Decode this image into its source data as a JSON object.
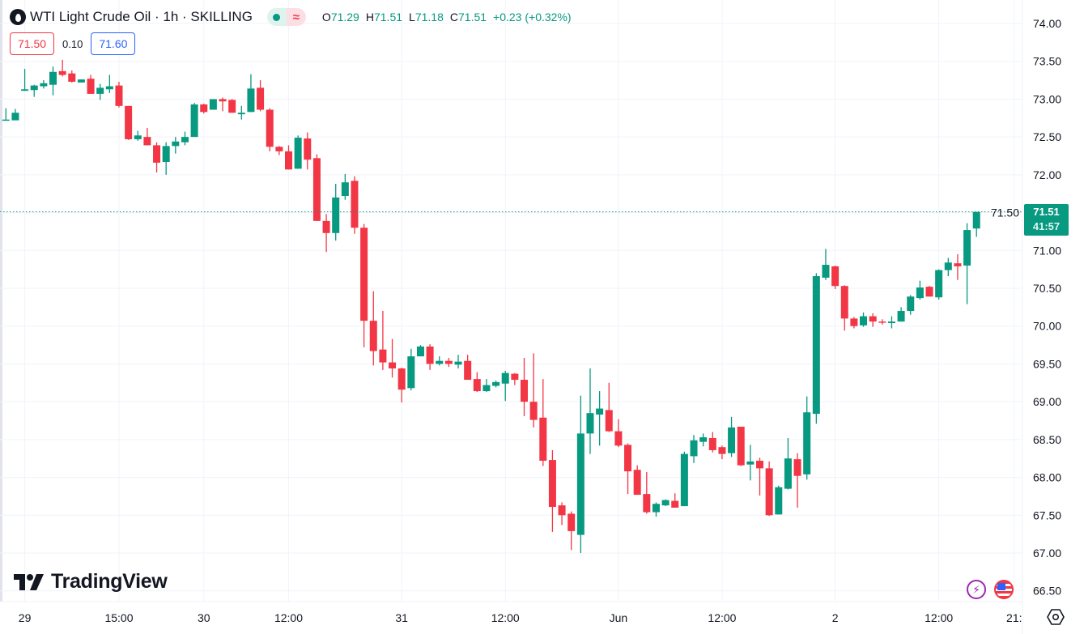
{
  "header": {
    "symbol_icon": "oil-drop-icon",
    "title": "WTI Light Crude Oil · 1h · SKILLING",
    "status_icons": [
      "market-open-dot-icon",
      "delayed-data-wave-icon"
    ],
    "wave_glyph": "≈",
    "ohlc": {
      "o_label": "O",
      "o": "71.29",
      "h_label": "H",
      "h": "71.51",
      "l_label": "L",
      "l": "71.18",
      "c_label": "C",
      "c": "71.51",
      "change": "+0.23 (+0.32%)"
    }
  },
  "trade": {
    "sell": "71.50",
    "spread": "0.10",
    "buy": "71.60"
  },
  "branding": {
    "logo_text": "TradingView"
  },
  "current_price": {
    "price": "71.51",
    "countdown": "41:57"
  },
  "colors": {
    "up": "#089981",
    "down": "#F23645",
    "grid": "#F0F3FA",
    "text": "#131722",
    "buy": "#2962FF"
  },
  "bottom_icons": [
    "lightning-icon",
    "us-flag-icon",
    "settings-icon"
  ],
  "chart_data": {
    "type": "candlestick",
    "title": "WTI Light Crude Oil · 1h · SKILLING",
    "timeframe": "1h",
    "ylim": [
      66.5,
      74.0
    ],
    "y_ticks": [
      "74.00",
      "73.50",
      "73.00",
      "72.50",
      "72.00",
      "71.50",
      "71.00",
      "70.50",
      "70.00",
      "69.50",
      "69.00",
      "68.50",
      "68.00",
      "67.50",
      "67.00",
      "66.50"
    ],
    "x_ticks": [
      {
        "label": "29",
        "bar": 2
      },
      {
        "label": "15:00",
        "bar": 12
      },
      {
        "label": "30",
        "bar": 21
      },
      {
        "label": "12:00",
        "bar": 30
      },
      {
        "label": "31",
        "bar": 42
      },
      {
        "label": "12:00",
        "bar": 53
      },
      {
        "label": "Jun",
        "bar": 65
      },
      {
        "label": "12:00",
        "bar": 76
      },
      {
        "label": "2",
        "bar": 88
      },
      {
        "label": "12:00",
        "bar": 99
      },
      {
        "label": "21:",
        "bar": 107
      }
    ],
    "grid": true,
    "last_price_line": 71.51,
    "ohlc": [
      [
        72.72,
        72.88,
        72.72,
        72.73
      ],
      [
        72.72,
        72.87,
        72.72,
        72.82
      ],
      [
        73.11,
        73.4,
        73.11,
        73.13
      ],
      [
        73.12,
        73.19,
        73.03,
        73.18
      ],
      [
        73.17,
        73.25,
        73.14,
        73.21
      ],
      [
        73.19,
        73.43,
        73.05,
        73.36
      ],
      [
        73.37,
        73.52,
        73.3,
        73.32
      ],
      [
        73.34,
        73.38,
        73.22,
        73.23
      ],
      [
        73.22,
        73.26,
        73.22,
        73.26
      ],
      [
        73.27,
        73.32,
        73.07,
        73.07
      ],
      [
        73.07,
        73.2,
        72.99,
        73.15
      ],
      [
        73.13,
        73.32,
        73.08,
        73.17
      ],
      [
        73.18,
        73.23,
        72.89,
        72.91
      ],
      [
        72.91,
        72.91,
        72.46,
        72.47
      ],
      [
        72.47,
        72.58,
        72.45,
        72.52
      ],
      [
        72.5,
        72.62,
        72.39,
        72.39
      ],
      [
        72.39,
        72.43,
        72.03,
        72.16
      ],
      [
        72.17,
        72.43,
        72.0,
        72.38
      ],
      [
        72.38,
        72.5,
        72.28,
        72.44
      ],
      [
        72.43,
        72.57,
        72.39,
        72.5
      ],
      [
        72.5,
        72.95,
        72.5,
        72.93
      ],
      [
        72.93,
        72.94,
        72.81,
        72.83
      ],
      [
        72.86,
        73.0,
        72.86,
        73.0
      ],
      [
        73.0,
        73.02,
        72.84,
        72.97
      ],
      [
        72.99,
        73.0,
        72.82,
        72.82
      ],
      [
        72.8,
        72.91,
        72.73,
        72.82
      ],
      [
        72.83,
        73.33,
        72.83,
        73.14
      ],
      [
        73.15,
        73.25,
        72.84,
        72.86
      ],
      [
        72.86,
        72.88,
        72.31,
        72.37
      ],
      [
        72.37,
        72.38,
        72.26,
        72.31
      ],
      [
        72.31,
        72.39,
        72.07,
        72.07
      ],
      [
        72.08,
        72.52,
        72.08,
        72.49
      ],
      [
        72.48,
        72.56,
        72.07,
        72.2
      ],
      [
        72.22,
        72.27,
        71.39,
        71.39
      ],
      [
        71.39,
        71.48,
        70.98,
        71.23
      ],
      [
        71.23,
        71.88,
        71.13,
        71.7
      ],
      [
        71.72,
        72.01,
        71.67,
        71.9
      ],
      [
        71.92,
        71.98,
        71.22,
        71.3
      ],
      [
        71.3,
        71.35,
        69.72,
        70.07
      ],
      [
        70.07,
        70.46,
        69.48,
        69.67
      ],
      [
        69.69,
        70.2,
        69.42,
        69.52
      ],
      [
        69.52,
        69.83,
        69.32,
        69.44
      ],
      [
        69.44,
        69.45,
        68.99,
        69.16
      ],
      [
        69.18,
        69.7,
        69.15,
        69.6
      ],
      [
        69.6,
        69.75,
        69.6,
        69.73
      ],
      [
        69.73,
        69.76,
        69.42,
        69.5
      ],
      [
        69.5,
        69.6,
        69.48,
        69.54
      ],
      [
        69.54,
        69.58,
        69.46,
        69.5
      ],
      [
        69.49,
        69.62,
        69.44,
        69.53
      ],
      [
        69.54,
        69.62,
        69.29,
        69.29
      ],
      [
        69.3,
        69.39,
        69.13,
        69.14
      ],
      [
        69.14,
        69.3,
        69.13,
        69.22
      ],
      [
        69.21,
        69.28,
        69.19,
        69.26
      ],
      [
        69.24,
        69.41,
        69.01,
        69.38
      ],
      [
        69.37,
        69.38,
        69.22,
        69.29
      ],
      [
        69.29,
        69.58,
        68.81,
        69.0
      ],
      [
        69.0,
        69.64,
        68.66,
        68.76
      ],
      [
        68.79,
        69.3,
        68.15,
        68.22
      ],
      [
        68.23,
        68.36,
        67.28,
        67.61
      ],
      [
        67.63,
        67.67,
        67.37,
        67.5
      ],
      [
        67.52,
        67.55,
        67.04,
        67.29
      ],
      [
        67.24,
        69.08,
        67.0,
        68.58
      ],
      [
        68.58,
        69.44,
        68.31,
        68.85
      ],
      [
        68.83,
        69.14,
        68.42,
        68.91
      ],
      [
        68.89,
        69.25,
        68.6,
        68.61
      ],
      [
        68.61,
        68.77,
        68.4,
        68.42
      ],
      [
        68.43,
        68.45,
        67.78,
        68.08
      ],
      [
        68.1,
        68.16,
        67.77,
        67.77
      ],
      [
        67.78,
        68.07,
        67.52,
        67.54
      ],
      [
        67.54,
        67.67,
        67.48,
        67.65
      ],
      [
        67.63,
        67.71,
        67.62,
        67.7
      ],
      [
        67.69,
        67.79,
        67.6,
        67.6
      ],
      [
        67.62,
        68.34,
        67.62,
        68.31
      ],
      [
        68.28,
        68.56,
        68.19,
        68.49
      ],
      [
        68.47,
        68.58,
        68.41,
        68.53
      ],
      [
        68.52,
        68.6,
        68.33,
        68.36
      ],
      [
        68.4,
        68.42,
        68.24,
        68.31
      ],
      [
        68.32,
        68.8,
        68.27,
        68.66
      ],
      [
        68.67,
        68.67,
        68.15,
        68.16
      ],
      [
        68.17,
        68.43,
        67.96,
        68.21
      ],
      [
        68.22,
        68.26,
        67.76,
        68.12
      ],
      [
        68.12,
        68.21,
        67.49,
        67.5
      ],
      [
        67.51,
        67.89,
        67.51,
        67.87
      ],
      [
        67.85,
        68.52,
        67.84,
        68.25
      ],
      [
        68.24,
        68.32,
        67.6,
        68.02
      ],
      [
        68.04,
        69.07,
        67.97,
        68.86
      ],
      [
        68.84,
        70.7,
        68.71,
        70.66
      ],
      [
        70.64,
        71.02,
        70.61,
        70.81
      ],
      [
        70.79,
        70.8,
        70.49,
        70.53
      ],
      [
        70.53,
        70.54,
        69.94,
        70.1
      ],
      [
        70.1,
        70.12,
        69.97,
        70.0
      ],
      [
        70.01,
        70.18,
        69.99,
        70.13
      ],
      [
        70.13,
        70.17,
        69.99,
        70.06
      ],
      [
        70.06,
        70.09,
        70.02,
        70.05
      ],
      [
        70.04,
        70.13,
        69.97,
        70.06
      ],
      [
        70.06,
        70.25,
        70.06,
        70.2
      ],
      [
        70.2,
        70.41,
        70.15,
        70.39
      ],
      [
        70.37,
        70.6,
        70.35,
        70.51
      ],
      [
        70.52,
        70.53,
        70.39,
        70.39
      ],
      [
        70.38,
        70.75,
        70.35,
        70.74
      ],
      [
        70.74,
        70.9,
        70.66,
        70.84
      ],
      [
        70.83,
        70.95,
        70.61,
        70.79
      ],
      [
        70.8,
        71.36,
        70.29,
        71.27
      ],
      [
        71.29,
        71.51,
        71.18,
        71.51
      ]
    ]
  }
}
